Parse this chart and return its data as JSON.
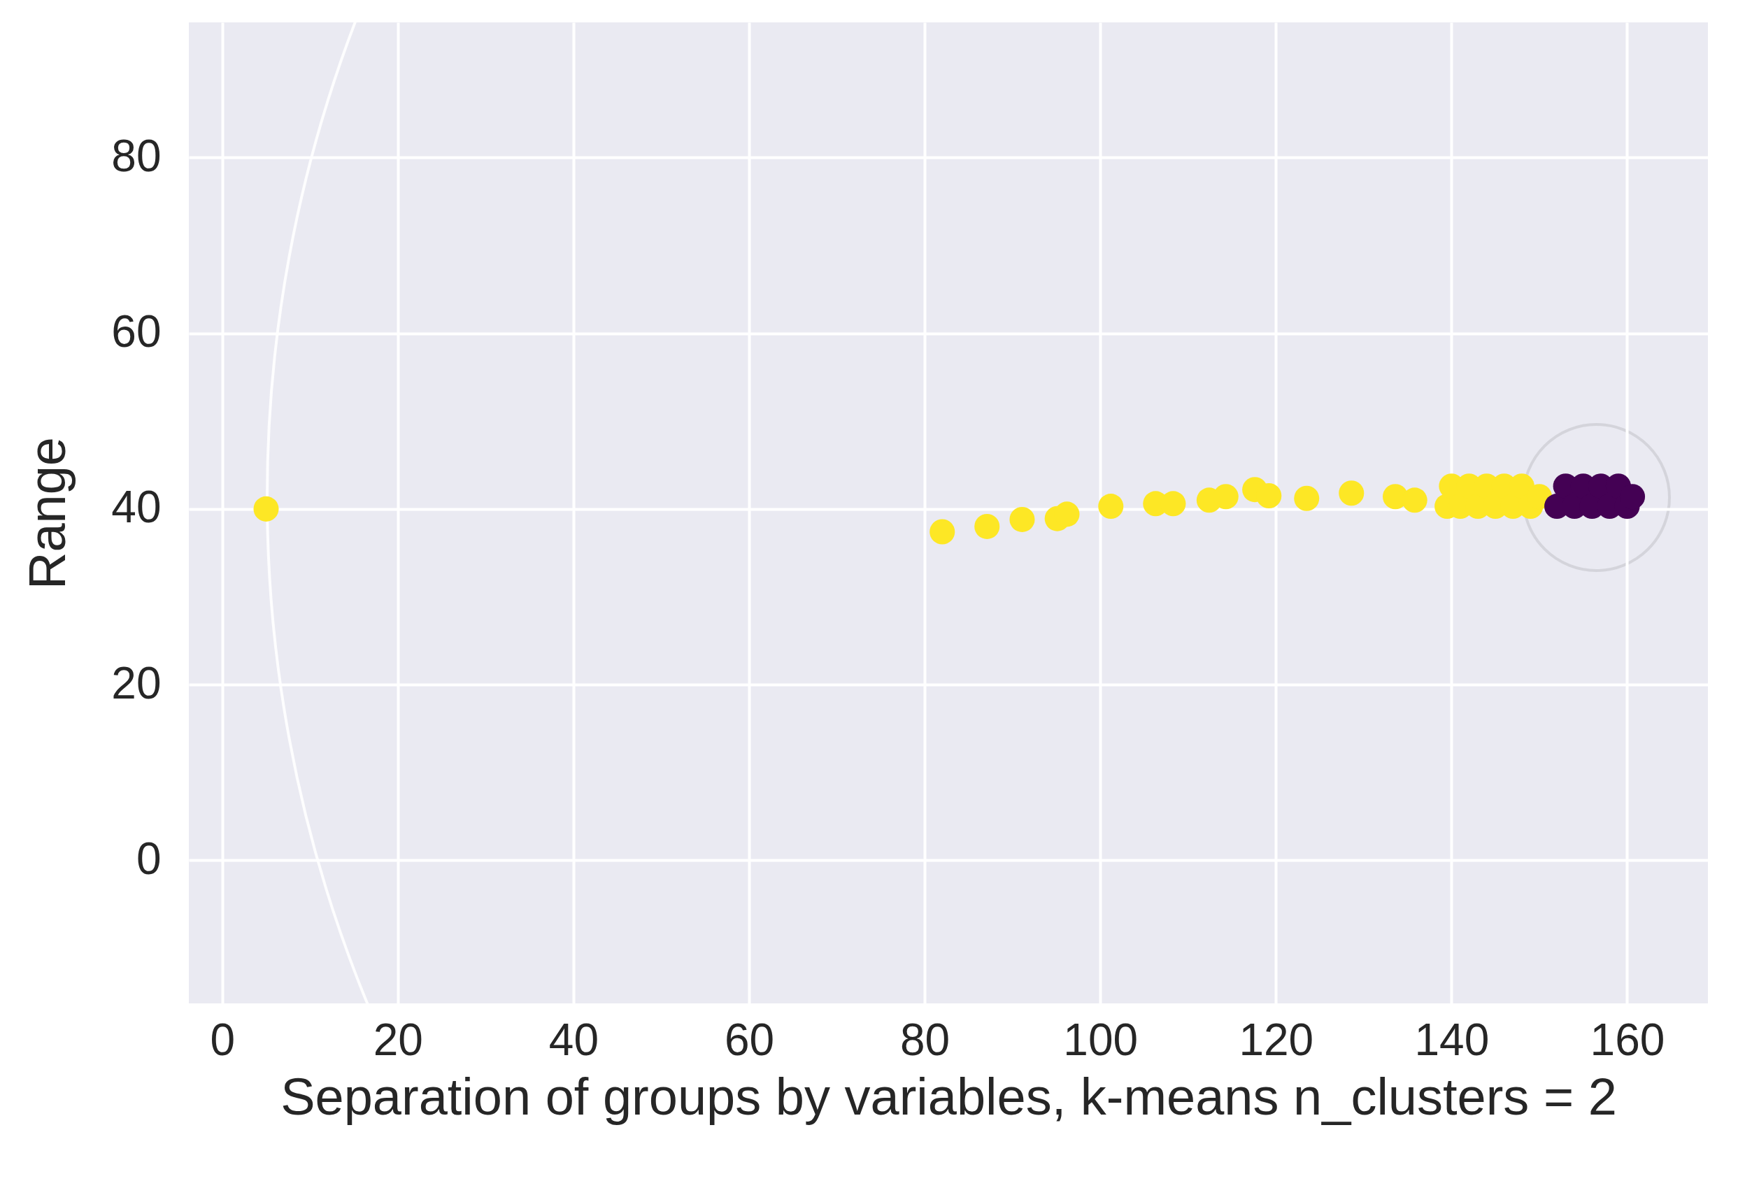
{
  "chart_data": {
    "type": "scatter",
    "xlabel": "Separation of groups by variables, k-means n_clusters = 2",
    "ylabel": "Range",
    "xlim": [
      -3.8,
      169.2
    ],
    "ylim": [
      -16.3,
      95.4
    ],
    "xticks": [
      0,
      20,
      40,
      60,
      80,
      100,
      120,
      140,
      160
    ],
    "yticks": [
      0,
      20,
      40,
      60,
      80
    ],
    "grid": true,
    "marker": "circle",
    "series": [
      {
        "color": "#fde725",
        "x": [
          5,
          82,
          87.1,
          91.1,
          95.1,
          96.2,
          101.2,
          106.3,
          108.3,
          112.4,
          114.3,
          117.6,
          119.2,
          123.5,
          128.6,
          133.6,
          135.8,
          139.5,
          140,
          141,
          142,
          143,
          144,
          145,
          146,
          147,
          148,
          149,
          150
        ],
        "values": [
          40,
          37.4,
          38,
          38.8,
          38.9,
          39.4,
          40.3,
          40.6,
          40.6,
          41,
          41.4,
          42.2,
          41.5,
          41.2,
          41.8,
          41.4,
          41,
          40.3,
          42.6,
          40.3,
          42.6,
          40.3,
          42.6,
          40.3,
          42.6,
          40.3,
          42.6,
          40.3,
          41.4
        ]
      },
      {
        "color": "#440154",
        "x": [
          152,
          153,
          154,
          155,
          156,
          157,
          158,
          159,
          160,
          160.6
        ],
        "values": [
          40.3,
          42.6,
          40.3,
          42.6,
          40.3,
          42.6,
          40.3,
          42.6,
          40.3,
          41.4
        ]
      }
    ]
  }
}
